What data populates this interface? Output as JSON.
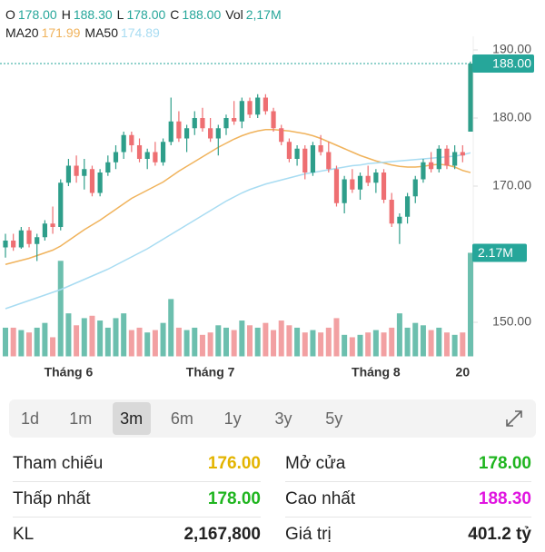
{
  "header": {
    "items": [
      [
        "O",
        "178.00"
      ],
      [
        "H",
        "188.30"
      ],
      [
        "L",
        "178.00"
      ],
      [
        "C",
        "188.00"
      ],
      [
        "Vol",
        "2,17M"
      ]
    ]
  },
  "chart_data": {
    "type": "candlestick",
    "categories": [
      null,
      null,
      null,
      null,
      null,
      null,
      null,
      null,
      "Tháng 6",
      null,
      null,
      null,
      null,
      null,
      null,
      null,
      null,
      null,
      null,
      null,
      null,
      null,
      null,
      null,
      null,
      null,
      "Tháng 7",
      null,
      null,
      null,
      null,
      null,
      null,
      null,
      null,
      null,
      null,
      null,
      null,
      null,
      null,
      null,
      null,
      null,
      null,
      null,
      null,
      "Tháng 8",
      null,
      null,
      null,
      null,
      null,
      null,
      null,
      null,
      null,
      null,
      "20",
      null
    ],
    "open": [
      161,
      162,
      161,
      163.5,
      161.5,
      162.5,
      164.5,
      164,
      170.5,
      173,
      171.5,
      172.5,
      169,
      172,
      173.5,
      175,
      177.5,
      176,
      174,
      175,
      173.5,
      176.5,
      179.5,
      177,
      178.5,
      180,
      178.5,
      177,
      178.5,
      180,
      179.5,
      182.5,
      180.5,
      183,
      181,
      178.5,
      176.5,
      174,
      175.5,
      172,
      176,
      175,
      172.5,
      167.5,
      171,
      169.5,
      171.5,
      170.5,
      172,
      168,
      164.5,
      165.5,
      168.5,
      171,
      173.5,
      172.5,
      175.5,
      173,
      175,
      178
    ],
    "high": [
      163,
      163,
      164,
      164,
      163,
      165,
      167,
      171,
      174,
      174.5,
      174,
      173,
      172.5,
      174.5,
      176,
      178,
      178,
      177,
      175.5,
      176.5,
      177,
      183,
      181,
      179,
      181,
      181.5,
      180,
      179,
      180.5,
      182.5,
      183,
      183,
      183.5,
      183.5,
      181.5,
      179,
      177,
      176,
      176,
      176.5,
      177.5,
      176.5,
      173,
      171.5,
      172.5,
      172,
      173,
      172.5,
      172.5,
      169,
      166,
      169,
      171.5,
      174,
      175,
      176,
      176,
      176,
      176,
      188.3
    ],
    "low": [
      159.5,
      160.5,
      160.8,
      161,
      159,
      162,
      163,
      163.5,
      170,
      170.5,
      169.5,
      168.5,
      168.5,
      171.5,
      172.5,
      174,
      175,
      173.5,
      172.5,
      173,
      173,
      176,
      176.5,
      175,
      177.5,
      178,
      176.5,
      174.5,
      177.5,
      179,
      178.5,
      180,
      180,
      180.5,
      178,
      176,
      173.5,
      173,
      171,
      171.5,
      174.5,
      172,
      167,
      166,
      169,
      168,
      170,
      169,
      167.5,
      164,
      161.5,
      164.5,
      167.5,
      170.5,
      172,
      172,
      172.5,
      172.5,
      173.5,
      178
    ],
    "close": [
      162,
      161,
      163.5,
      161.5,
      162.5,
      164.5,
      164,
      170.5,
      173,
      171.5,
      172.5,
      169,
      172,
      173.5,
      175,
      177.5,
      176,
      174,
      175,
      173.5,
      176.5,
      179.5,
      177,
      178.5,
      180,
      178.5,
      177,
      178.5,
      180,
      179.5,
      182.5,
      180.5,
      183,
      181,
      178.5,
      176.5,
      174,
      175.5,
      172,
      176,
      175,
      172.5,
      167.5,
      171,
      169.5,
      171.5,
      170.5,
      172,
      168,
      164.5,
      165.5,
      168.5,
      171,
      173.5,
      172.5,
      175.5,
      173,
      175,
      174.5,
      188
    ],
    "volume": [
      600000,
      600000,
      550000,
      500000,
      600000,
      700000,
      400000,
      2000000,
      900000,
      650000,
      800000,
      850000,
      750000,
      600000,
      800000,
      900000,
      550000,
      600000,
      500000,
      550000,
      700000,
      1200000,
      600000,
      550000,
      600000,
      450000,
      500000,
      650000,
      600000,
      550000,
      750000,
      650000,
      600000,
      700000,
      550000,
      750000,
      650000,
      600000,
      500000,
      550000,
      500000,
      600000,
      800000,
      450000,
      400000,
      450000,
      500000,
      550000,
      500000,
      600000,
      900000,
      600000,
      700000,
      650000,
      550000,
      600000,
      500000,
      450000,
      500000,
      2167800
    ],
    "volume_label": "2.17M",
    "last_price_label": "188.00",
    "series": [
      {
        "name": "MA20",
        "color": "#f0b35c",
        "last_label": "171.99",
        "values": [
          158.5,
          158.8,
          159.1,
          159.4,
          159.8,
          160.2,
          160.6,
          161.2,
          162,
          162.8,
          163.6,
          164.3,
          165,
          165.8,
          166.6,
          167.4,
          168.2,
          168.8,
          169.4,
          170,
          170.6,
          171.4,
          172.2,
          172.9,
          173.6,
          174.3,
          175,
          175.7,
          176.3,
          176.9,
          177.4,
          177.8,
          178.1,
          178.3,
          178.3,
          178.2,
          178.1,
          177.9,
          177.7,
          177.4,
          177,
          176.5,
          176,
          175.5,
          175,
          174.5,
          174.1,
          173.7,
          173.4,
          173.1,
          172.9,
          172.8,
          172.8,
          172.9,
          173.1,
          173.2,
          173.1,
          172.8,
          172.3,
          171.99
        ]
      },
      {
        "name": "MA50",
        "color": "#a8dcf2",
        "last_label": "174.89",
        "values": [
          152,
          152.4,
          152.8,
          153.2,
          153.6,
          154,
          154.4,
          154.8,
          155.3,
          155.8,
          156.3,
          156.8,
          157.3,
          157.8,
          158.4,
          159,
          159.6,
          160.2,
          160.8,
          161.5,
          162.2,
          162.9,
          163.6,
          164.3,
          165,
          165.7,
          166.4,
          167.1,
          167.8,
          168.4,
          169,
          169.5,
          169.9,
          170.3,
          170.6,
          170.9,
          171.2,
          171.5,
          171.8,
          172,
          172.2,
          172.4,
          172.6,
          172.8,
          173,
          173.1,
          173.3,
          173.4,
          173.5,
          173.6,
          173.7,
          173.8,
          173.9,
          174,
          174.1,
          174.2,
          174.3,
          174.4,
          174.6,
          174.89
        ]
      }
    ],
    "ylim": [
      145,
      192
    ],
    "yticks": [
      {
        "value": 150,
        "label": "150.00"
      },
      {
        "value": 170,
        "label": "170.00"
      },
      {
        "value": 180,
        "label": "180.00"
      },
      {
        "value": 190,
        "label": "190.00"
      }
    ],
    "vol_lim": [
      0,
      6700000
    ],
    "up_color": "#2e9e8a",
    "down_color": "#ee6f72",
    "up_volume_color": "#6cbfae",
    "down_volume_color": "#f2a0a2",
    "label_color": "#26a69a"
  },
  "tabs": {
    "items": [
      "1d",
      "1m",
      "3m",
      "6m",
      "1y",
      "3y",
      "5y"
    ],
    "selected": 2
  },
  "stats": [
    [
      {
        "label": "Tham chiếu",
        "value": "176.00",
        "color": "#e3b400"
      },
      {
        "label": "Mở cửa",
        "value": "178.00",
        "color": "#1fb51f"
      }
    ],
    [
      {
        "label": "Thấp nhất",
        "value": "178.00",
        "color": "#1fb51f"
      },
      {
        "label": "Cao nhất",
        "value": "188.30",
        "color": "#e014e0"
      }
    ],
    [
      {
        "label": "KL",
        "value": "2,167,800",
        "color": "#222222"
      },
      {
        "label": "Giá trị",
        "value": "401.2 tỷ",
        "color": "#222222"
      }
    ]
  ]
}
